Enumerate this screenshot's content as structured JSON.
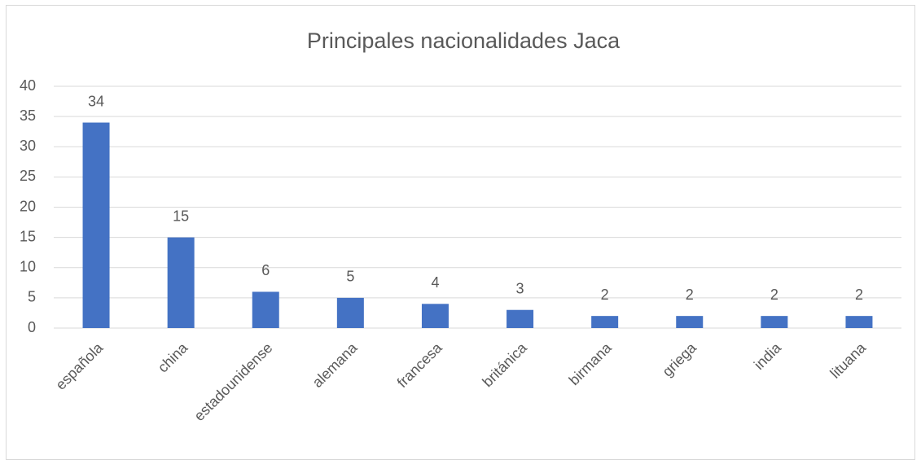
{
  "chart_data": {
    "type": "bar",
    "title": "Principales nacionalidades Jaca",
    "categories": [
      "española",
      "china",
      "estadounidense",
      "alemana",
      "francesa",
      "británica",
      "birmana",
      "griega",
      "india",
      "lituana"
    ],
    "values": [
      34,
      15,
      6,
      5,
      4,
      3,
      2,
      2,
      2,
      2
    ],
    "color": "#4472c4",
    "ylim": [
      0,
      40
    ],
    "yticks": [
      0,
      5,
      10,
      15,
      20,
      25,
      30,
      35,
      40
    ],
    "grid": true,
    "data_labels": true
  }
}
